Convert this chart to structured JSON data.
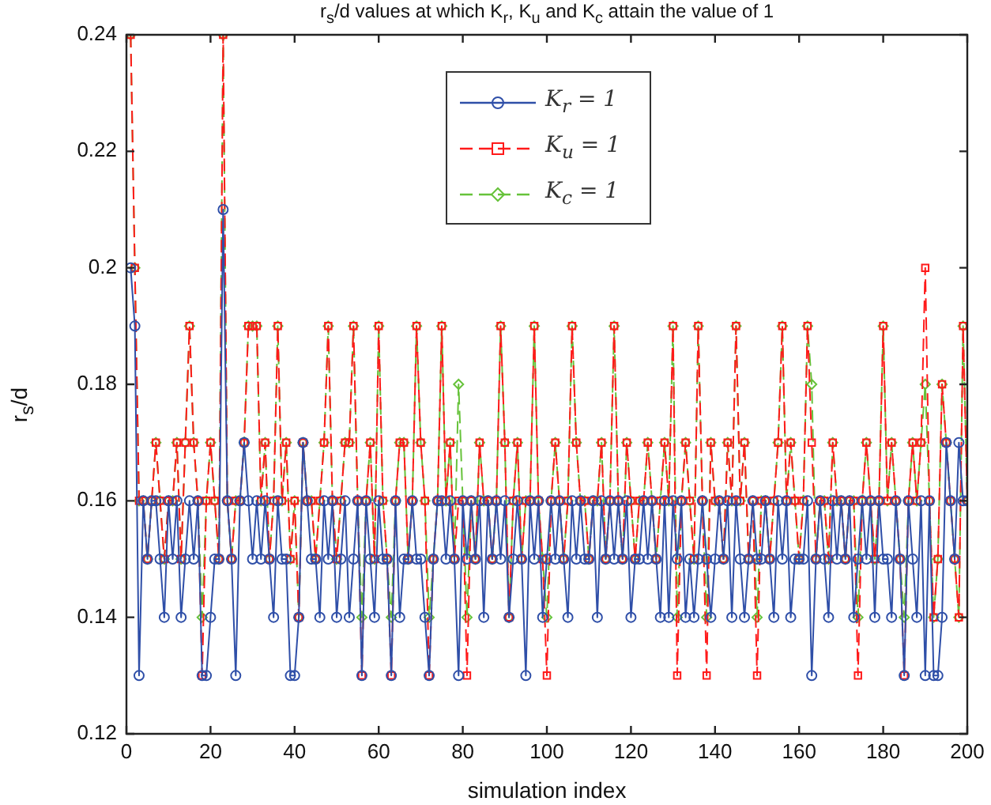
{
  "chart_data": {
    "type": "line",
    "title": "r$_{s}$/d values at which K$_{r}$, K$_{u}$ and K$_{c}$ attain the value of 1",
    "xlabel": "simulation index",
    "ylabel": "r$_{s}$/d",
    "xlim": [
      0,
      200
    ],
    "xticks": [
      0,
      20,
      40,
      60,
      80,
      100,
      120,
      140,
      160,
      180,
      200
    ],
    "ylim": [
      0.12,
      0.24
    ],
    "yticks": [
      0.12,
      0.14,
      0.16,
      0.18,
      0.2,
      0.22,
      0.24
    ],
    "grid": false,
    "legend": "top",
    "x": [
      1,
      2,
      3,
      4,
      5,
      6,
      7,
      8,
      9,
      10,
      11,
      12,
      13,
      14,
      15,
      16,
      17,
      18,
      19,
      20,
      21,
      22,
      23,
      24,
      25,
      26,
      27,
      28,
      29,
      30,
      31,
      32,
      33,
      34,
      35,
      36,
      37,
      38,
      39,
      40,
      41,
      42,
      43,
      44,
      45,
      46,
      47,
      48,
      49,
      50,
      51,
      52,
      53,
      54,
      55,
      56,
      57,
      58,
      59,
      60,
      61,
      62,
      63,
      64,
      65,
      66,
      67,
      68,
      69,
      70,
      71,
      72,
      73,
      74,
      75,
      76,
      77,
      78,
      79,
      80,
      81,
      82,
      83,
      84,
      85,
      86,
      87,
      88,
      89,
      90,
      91,
      92,
      93,
      94,
      95,
      96,
      97,
      98,
      99,
      100,
      101,
      102,
      103,
      104,
      105,
      106,
      107,
      108,
      109,
      110,
      111,
      112,
      113,
      114,
      115,
      116,
      117,
      118,
      119,
      120,
      121,
      122,
      123,
      124,
      125,
      126,
      127,
      128,
      129,
      130,
      131,
      132,
      133,
      134,
      135,
      136,
      137,
      138,
      139,
      140,
      141,
      142,
      143,
      144,
      145,
      146,
      147,
      148,
      149,
      150,
      151,
      152,
      153,
      154,
      155,
      156,
      157,
      158,
      159,
      160,
      161,
      162,
      163,
      164,
      165,
      166,
      167,
      168,
      169,
      170,
      171,
      172,
      173,
      174,
      175,
      176,
      177,
      178,
      179,
      180,
      181,
      182,
      183,
      184,
      185,
      186,
      187,
      188,
      189,
      190,
      191,
      192,
      193,
      194,
      195,
      196,
      197,
      198,
      199,
      200
    ],
    "series": [
      {
        "name": "K$_{r}$ = 1",
        "color": "#2f4fa8",
        "marker": "circle",
        "line_style": "solid",
        "values": [
          0.2,
          0.19,
          0.13,
          0.16,
          0.15,
          0.16,
          0.16,
          0.15,
          0.14,
          0.16,
          0.15,
          0.16,
          0.14,
          0.15,
          0.16,
          0.15,
          0.16,
          0.13,
          0.13,
          0.14,
          0.15,
          0.15,
          0.21,
          0.16,
          0.15,
          0.13,
          0.16,
          0.17,
          0.16,
          0.15,
          0.16,
          0.15,
          0.16,
          0.15,
          0.14,
          0.16,
          0.15,
          0.15,
          0.13,
          0.13,
          0.14,
          0.17,
          0.16,
          0.15,
          0.15,
          0.14,
          0.16,
          0.15,
          0.16,
          0.14,
          0.15,
          0.16,
          0.14,
          0.15,
          0.16,
          0.13,
          0.16,
          0.15,
          0.14,
          0.16,
          0.15,
          0.15,
          0.13,
          0.16,
          0.14,
          0.15,
          0.15,
          0.16,
          0.15,
          0.15,
          0.14,
          0.13,
          0.15,
          0.16,
          0.16,
          0.15,
          0.16,
          0.15,
          0.13,
          0.16,
          0.15,
          0.16,
          0.15,
          0.16,
          0.14,
          0.16,
          0.15,
          0.16,
          0.15,
          0.16,
          0.14,
          0.15,
          0.16,
          0.15,
          0.13,
          0.16,
          0.15,
          0.16,
          0.14,
          0.15,
          0.16,
          0.15,
          0.16,
          0.15,
          0.14,
          0.16,
          0.15,
          0.16,
          0.15,
          0.15,
          0.16,
          0.14,
          0.16,
          0.15,
          0.16,
          0.15,
          0.16,
          0.15,
          0.16,
          0.14,
          0.15,
          0.15,
          0.16,
          0.15,
          0.16,
          0.15,
          0.14,
          0.16,
          0.14,
          0.16,
          0.15,
          0.16,
          0.14,
          0.15,
          0.14,
          0.15,
          0.16,
          0.15,
          0.14,
          0.15,
          0.16,
          0.15,
          0.16,
          0.14,
          0.16,
          0.15,
          0.14,
          0.15,
          0.16,
          0.15,
          0.15,
          0.16,
          0.15,
          0.14,
          0.16,
          0.15,
          0.16,
          0.14,
          0.15,
          0.15,
          0.15,
          0.16,
          0.13,
          0.15,
          0.16,
          0.15,
          0.14,
          0.16,
          0.15,
          0.16,
          0.15,
          0.16,
          0.14,
          0.15,
          0.16,
          0.15,
          0.16,
          0.14,
          0.16,
          0.15,
          0.15,
          0.14,
          0.16,
          0.15,
          0.13,
          0.16,
          0.15,
          0.14,
          0.16,
          0.13,
          0.16,
          0.13,
          0.13,
          0.14,
          0.17,
          0.16,
          0.15,
          0.17,
          0.16,
          0.16
        ]
      },
      {
        "name": "K$_{u}$ = 1",
        "color": "#ff1a1a",
        "marker": "square",
        "line_style": "dashed",
        "values": [
          0.24,
          0.2,
          0.16,
          0.16,
          0.15,
          0.16,
          0.17,
          0.16,
          0.15,
          0.16,
          0.16,
          0.17,
          0.15,
          0.17,
          0.19,
          0.17,
          0.16,
          0.13,
          0.16,
          0.17,
          0.16,
          0.15,
          0.24,
          0.16,
          0.15,
          0.16,
          0.16,
          0.17,
          0.19,
          0.19,
          0.19,
          0.16,
          0.17,
          0.15,
          0.16,
          0.19,
          0.16,
          0.17,
          0.15,
          0.16,
          0.14,
          0.17,
          0.16,
          0.16,
          0.15,
          0.16,
          0.17,
          0.19,
          0.16,
          0.15,
          0.16,
          0.17,
          0.17,
          0.19,
          0.16,
          0.13,
          0.16,
          0.17,
          0.15,
          0.19,
          0.16,
          0.15,
          0.13,
          0.16,
          0.17,
          0.17,
          0.15,
          0.16,
          0.19,
          0.17,
          0.16,
          0.13,
          0.15,
          0.16,
          0.19,
          0.16,
          0.17,
          0.15,
          0.16,
          0.16,
          0.13,
          0.16,
          0.15,
          0.17,
          0.16,
          0.16,
          0.15,
          0.16,
          0.19,
          0.17,
          0.14,
          0.16,
          0.17,
          0.15,
          0.16,
          0.16,
          0.19,
          0.16,
          0.15,
          0.13,
          0.16,
          0.17,
          0.16,
          0.15,
          0.16,
          0.19,
          0.17,
          0.16,
          0.16,
          0.15,
          0.16,
          0.16,
          0.17,
          0.15,
          0.16,
          0.19,
          0.16,
          0.15,
          0.17,
          0.16,
          0.15,
          0.16,
          0.16,
          0.17,
          0.16,
          0.15,
          0.16,
          0.17,
          0.16,
          0.19,
          0.13,
          0.16,
          0.17,
          0.16,
          0.15,
          0.19,
          0.16,
          0.13,
          0.17,
          0.16,
          0.16,
          0.15,
          0.17,
          0.16,
          0.19,
          0.16,
          0.17,
          0.15,
          0.16,
          0.13,
          0.16,
          0.16,
          0.15,
          0.16,
          0.17,
          0.19,
          0.16,
          0.17,
          0.16,
          0.15,
          0.16,
          0.19,
          0.17,
          0.15,
          0.16,
          0.16,
          0.15,
          0.17,
          0.16,
          0.16,
          0.15,
          0.16,
          0.16,
          0.13,
          0.16,
          0.17,
          0.16,
          0.15,
          0.16,
          0.19,
          0.16,
          0.17,
          0.16,
          0.15,
          0.13,
          0.16,
          0.17,
          0.16,
          0.17,
          0.2,
          0.16,
          0.14,
          0.15,
          0.18,
          0.17,
          0.16,
          0.15,
          0.14,
          0.19,
          0.16
        ]
      },
      {
        "name": "K$_{c}$ = 1",
        "color": "#66c23a",
        "marker": "diamond",
        "line_style": "dashed",
        "values": [
          0.24,
          0.2,
          0.16,
          0.16,
          0.15,
          0.16,
          0.17,
          0.16,
          0.15,
          0.16,
          0.16,
          0.17,
          0.15,
          0.17,
          0.19,
          0.17,
          0.16,
          0.14,
          0.16,
          0.17,
          0.16,
          0.15,
          0.24,
          0.16,
          0.15,
          0.16,
          0.16,
          0.17,
          0.19,
          0.19,
          0.19,
          0.16,
          0.17,
          0.15,
          0.16,
          0.19,
          0.16,
          0.17,
          0.15,
          0.16,
          0.14,
          0.17,
          0.16,
          0.16,
          0.15,
          0.16,
          0.17,
          0.19,
          0.16,
          0.15,
          0.16,
          0.17,
          0.17,
          0.19,
          0.16,
          0.14,
          0.16,
          0.17,
          0.15,
          0.19,
          0.16,
          0.15,
          0.14,
          0.16,
          0.17,
          0.17,
          0.15,
          0.16,
          0.19,
          0.17,
          0.16,
          0.14,
          0.15,
          0.16,
          0.19,
          0.16,
          0.17,
          0.15,
          0.18,
          0.16,
          0.14,
          0.16,
          0.15,
          0.17,
          0.16,
          0.16,
          0.15,
          0.16,
          0.19,
          0.17,
          0.14,
          0.16,
          0.17,
          0.15,
          0.16,
          0.16,
          0.19,
          0.16,
          0.15,
          0.14,
          0.16,
          0.17,
          0.16,
          0.15,
          0.16,
          0.19,
          0.17,
          0.16,
          0.16,
          0.15,
          0.16,
          0.16,
          0.17,
          0.15,
          0.16,
          0.19,
          0.16,
          0.15,
          0.17,
          0.16,
          0.15,
          0.16,
          0.16,
          0.17,
          0.16,
          0.15,
          0.16,
          0.17,
          0.16,
          0.19,
          0.14,
          0.16,
          0.17,
          0.16,
          0.15,
          0.19,
          0.16,
          0.14,
          0.17,
          0.16,
          0.16,
          0.15,
          0.17,
          0.16,
          0.19,
          0.16,
          0.17,
          0.15,
          0.16,
          0.14,
          0.16,
          0.16,
          0.15,
          0.16,
          0.17,
          0.19,
          0.16,
          0.17,
          0.16,
          0.15,
          0.16,
          0.19,
          0.18,
          0.15,
          0.16,
          0.16,
          0.15,
          0.17,
          0.16,
          0.16,
          0.15,
          0.16,
          0.16,
          0.14,
          0.16,
          0.17,
          0.16,
          0.15,
          0.16,
          0.19,
          0.16,
          0.17,
          0.16,
          0.15,
          0.14,
          0.16,
          0.17,
          0.16,
          0.17,
          0.18,
          0.16,
          0.14,
          0.15,
          0.18,
          0.17,
          0.16,
          0.15,
          0.14,
          0.19,
          0.16
        ]
      }
    ]
  }
}
